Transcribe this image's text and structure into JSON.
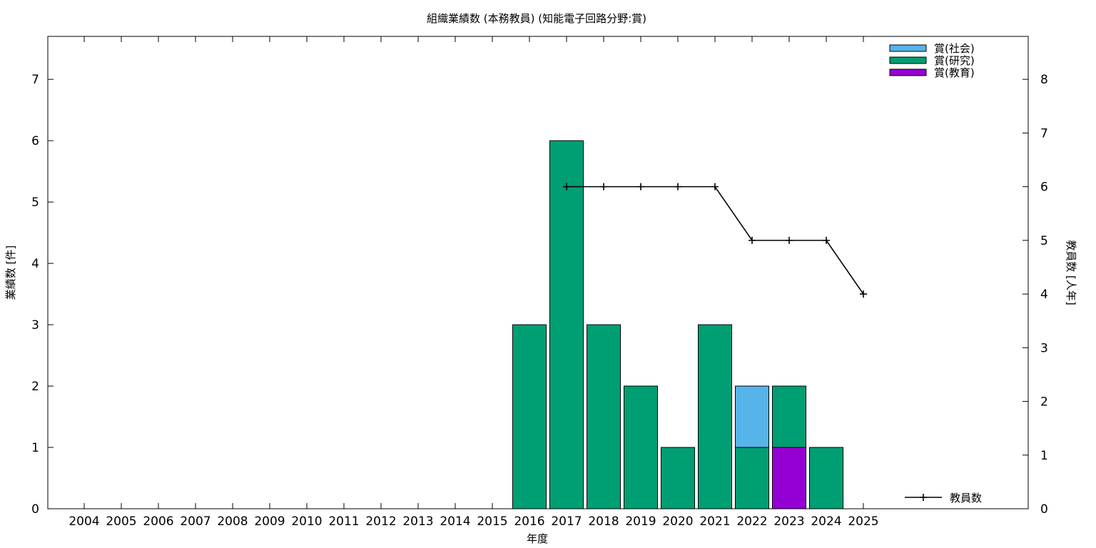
{
  "chart_data": {
    "type": "bar",
    "title": "組織業績数 (本務教員) (知能電子回路分野:賞)",
    "xlabel": "年度",
    "ylabel": "業績数 [件]",
    "y2label": "教員数 [人年]",
    "categories": [
      "2004",
      "2005",
      "2006",
      "2007",
      "2008",
      "2009",
      "2010",
      "2011",
      "2012",
      "2013",
      "2014",
      "2015",
      "2016",
      "2017",
      "2018",
      "2019",
      "2020",
      "2021",
      "2022",
      "2023",
      "2024",
      "2025"
    ],
    "ylim": [
      0,
      7.7
    ],
    "y2lim": [
      0,
      8.8
    ],
    "yticks": [
      0,
      1,
      2,
      3,
      4,
      5,
      6,
      7
    ],
    "y2ticks": [
      0,
      1,
      2,
      3,
      4,
      5,
      6,
      7,
      8
    ],
    "stacked": true,
    "legend_position": "top-right",
    "series": [
      {
        "name": "賞(教育)",
        "color": "#9400d3",
        "values": [
          0,
          0,
          0,
          0,
          0,
          0,
          0,
          0,
          0,
          0,
          0,
          0,
          0,
          0,
          0,
          0,
          0,
          0,
          0,
          1,
          0,
          0
        ]
      },
      {
        "name": "賞(研究)",
        "color": "#009e73",
        "values": [
          0,
          0,
          0,
          0,
          0,
          0,
          0,
          0,
          0,
          0,
          0,
          0,
          3,
          6,
          3,
          2,
          1,
          3,
          1,
          1,
          1,
          0
        ]
      },
      {
        "name": "賞(社会)",
        "color": "#56b4e9",
        "values": [
          0,
          0,
          0,
          0,
          0,
          0,
          0,
          0,
          0,
          0,
          0,
          0,
          0,
          0,
          0,
          0,
          0,
          0,
          1,
          0,
          0,
          0
        ]
      }
    ],
    "legend_order": [
      "賞(社会)",
      "賞(研究)",
      "賞(教育)"
    ],
    "line_series": {
      "name": "教員数",
      "axis": "y2",
      "color": "#000000",
      "points": [
        [
          2017,
          6
        ],
        [
          2018,
          6
        ],
        [
          2019,
          6
        ],
        [
          2020,
          6
        ],
        [
          2021,
          6
        ],
        [
          2022,
          5
        ],
        [
          2023,
          5
        ],
        [
          2024,
          5
        ],
        [
          2025,
          4
        ]
      ]
    }
  }
}
